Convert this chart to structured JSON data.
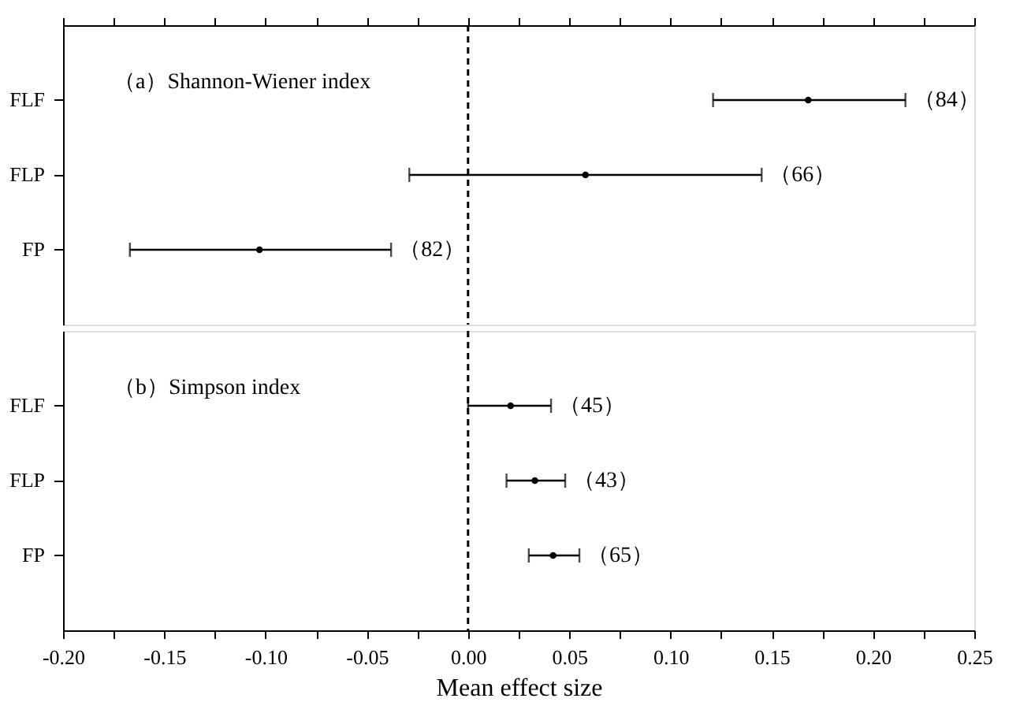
{
  "chart_data": [
    {
      "type": "scatter",
      "orientation": "horizontal",
      "categories": [
        "FLF",
        "FLP",
        "FP"
      ],
      "values": [
        0.168,
        0.058,
        -0.103
      ],
      "errors": [
        [
          0.121,
          0.216
        ],
        [
          -0.029,
          0.145
        ],
        [
          -0.167,
          -0.038
        ]
      ],
      "color": "#000000",
      "marker": "circle",
      "xlim": [
        -0.2,
        0.25
      ],
      "tick_labels": "y",
      "xticks": [
        {
          "value": -0.2,
          "label": null
        },
        {
          "value": -0.175,
          "label": null
        },
        {
          "value": -0.15,
          "label": null
        },
        {
          "value": -0.125,
          "label": null
        },
        {
          "value": -0.1,
          "label": null
        },
        {
          "value": -0.075,
          "label": null
        },
        {
          "value": -0.05,
          "label": null
        },
        {
          "value": -0.025,
          "label": null
        },
        {
          "value": 0,
          "label": null
        },
        {
          "value": 0.025,
          "label": null
        },
        {
          "value": 0.05,
          "label": null
        },
        {
          "value": 0.075,
          "label": null
        },
        {
          "value": 0.1,
          "label": null
        },
        {
          "value": 0.125,
          "label": null
        },
        {
          "value": 0.15,
          "label": null
        },
        {
          "value": 0.175,
          "label": null
        },
        {
          "value": 0.2,
          "label": null
        },
        {
          "value": 0.225,
          "label": null
        },
        {
          "value": 0.25,
          "label": null
        }
      ],
      "ref_lines": [
        {
          "axis": "x",
          "value": 0,
          "line_style": "dashed",
          "color": "#000000"
        }
      ],
      "grid": false,
      "annotations": [
        "（a）Shannon-Wiener index",
        "（84）",
        "（66）",
        "（82）"
      ]
    },
    {
      "type": "scatter",
      "orientation": "horizontal",
      "categories": [
        "FLF",
        "FLP",
        "FP"
      ],
      "values": [
        0.021,
        0.033,
        0.042
      ],
      "errors": [
        [
          0.0,
          0.041
        ],
        [
          0.019,
          0.048
        ],
        [
          0.03,
          0.055
        ]
      ],
      "color": "#000000",
      "marker": "circle",
      "xlim": [
        -0.2,
        0.25
      ],
      "xlabel": "Mean effect size",
      "xticks": [
        {
          "value": -0.2,
          "label": "-0.20"
        },
        {
          "value": -0.175,
          "label": null
        },
        {
          "value": -0.15,
          "label": "-0.15"
        },
        {
          "value": -0.125,
          "label": null
        },
        {
          "value": -0.1,
          "label": "-0.10"
        },
        {
          "value": -0.075,
          "label": null
        },
        {
          "value": -0.05,
          "label": "-0.05"
        },
        {
          "value": -0.025,
          "label": null
        },
        {
          "value": 0,
          "label": "0.00"
        },
        {
          "value": 0.025,
          "label": null
        },
        {
          "value": 0.05,
          "label": "0.05"
        },
        {
          "value": 0.075,
          "label": null
        },
        {
          "value": 0.1,
          "label": "0.10"
        },
        {
          "value": 0.125,
          "label": null
        },
        {
          "value": 0.15,
          "label": "0.15"
        },
        {
          "value": 0.175,
          "label": null
        },
        {
          "value": 0.2,
          "label": "0.20"
        },
        {
          "value": 0.225,
          "label": null
        },
        {
          "value": 0.25,
          "label": "0.25"
        }
      ],
      "ref_lines": [
        {
          "axis": "x",
          "value": 0,
          "line_style": "dashed",
          "color": "#000000"
        }
      ],
      "grid": false,
      "annotations": [
        "（b）Simpson index",
        "（45）",
        "（43）",
        "（65）"
      ]
    }
  ]
}
